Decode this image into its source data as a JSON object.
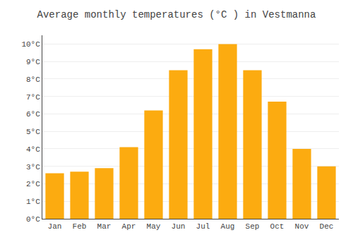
{
  "chart_data": {
    "type": "bar",
    "title": "Average monthly temperatures (°C ) in Vestmanna",
    "categories": [
      "Jan",
      "Feb",
      "Mar",
      "Apr",
      "May",
      "Jun",
      "Jul",
      "Aug",
      "Sep",
      "Oct",
      "Nov",
      "Dec"
    ],
    "values": [
      2.6,
      2.7,
      2.9,
      4.1,
      6.2,
      8.5,
      9.7,
      10.0,
      8.5,
      6.7,
      4.0,
      3.0
    ],
    "color": "#FCAB10",
    "ylim": [
      0,
      10.5
    ],
    "yticks": [
      {
        "value": 0,
        "label": "0°C"
      },
      {
        "value": 1,
        "label": "1°C"
      },
      {
        "value": 2,
        "label": "2°C"
      },
      {
        "value": 3,
        "label": "3°C"
      },
      {
        "value": 4,
        "label": "4°C"
      },
      {
        "value": 5,
        "label": "5°C"
      },
      {
        "value": 6,
        "label": "6°C"
      },
      {
        "value": 7,
        "label": "7°C"
      },
      {
        "value": 8,
        "label": "8°C"
      },
      {
        "value": 9,
        "label": "9°C"
      },
      {
        "value": 10,
        "label": "10°C"
      }
    ],
    "grid": true
  }
}
